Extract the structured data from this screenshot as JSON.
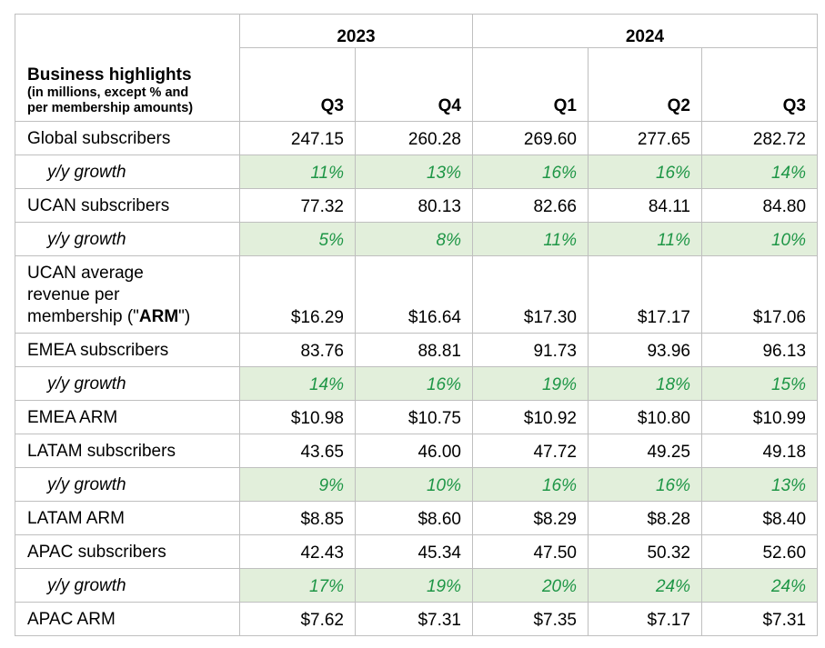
{
  "table": {
    "header": {
      "title": "Business highlights",
      "subtitle_line1": "(in millions, except % and",
      "subtitle_line2": "per membership amounts)",
      "years": [
        "2023",
        "2024"
      ],
      "quarters": [
        "Q3",
        "Q4",
        "Q1",
        "Q2",
        "Q3"
      ]
    },
    "rows": [
      {
        "label": "Global subscribers",
        "growth": false,
        "values": [
          "247.15",
          "260.28",
          "269.60",
          "277.65",
          "282.72"
        ]
      },
      {
        "label": "y/y growth",
        "growth": true,
        "values": [
          "11%",
          "13%",
          "16%",
          "16%",
          "14%"
        ]
      },
      {
        "label": "UCAN subscribers",
        "growth": false,
        "values": [
          "77.32",
          "80.13",
          "82.66",
          "84.11",
          "84.80"
        ]
      },
      {
        "label": "y/y growth",
        "growth": true,
        "values": [
          "5%",
          "8%",
          "11%",
          "11%",
          "10%"
        ]
      },
      {
        "label_line1": "UCAN average",
        "label_line2": "revenue per",
        "label_line3_pre": "membership (\"",
        "label_line3_bold": "ARM",
        "label_line3_post": "\")",
        "growth": false,
        "values": [
          "$16.29",
          "$16.64",
          "$17.30",
          "$17.17",
          "$17.06"
        ]
      },
      {
        "label": "EMEA subscribers",
        "growth": false,
        "values": [
          "83.76",
          "88.81",
          "91.73",
          "93.96",
          "96.13"
        ]
      },
      {
        "label": "y/y growth",
        "growth": true,
        "values": [
          "14%",
          "16%",
          "19%",
          "18%",
          "15%"
        ]
      },
      {
        "label": "EMEA ARM",
        "growth": false,
        "values": [
          "$10.98",
          "$10.75",
          "$10.92",
          "$10.80",
          "$10.99"
        ]
      },
      {
        "label": "LATAM subscribers",
        "growth": false,
        "values": [
          "43.65",
          "46.00",
          "47.72",
          "49.25",
          "49.18"
        ]
      },
      {
        "label": "y/y growth",
        "growth": true,
        "values": [
          "9%",
          "10%",
          "16%",
          "16%",
          "13%"
        ]
      },
      {
        "label": "LATAM ARM",
        "growth": false,
        "values": [
          "$8.85",
          "$8.60",
          "$8.29",
          "$8.28",
          "$8.40"
        ]
      },
      {
        "label": "APAC subscribers",
        "growth": false,
        "values": [
          "42.43",
          "45.34",
          "47.50",
          "50.32",
          "52.60"
        ]
      },
      {
        "label": "y/y growth",
        "growth": true,
        "values": [
          "17%",
          "19%",
          "20%",
          "24%",
          "24%"
        ]
      },
      {
        "label": "APAC ARM",
        "growth": false,
        "values": [
          "$7.62",
          "$7.31",
          "$7.35",
          "$7.17",
          "$7.31"
        ]
      }
    ]
  },
  "colors": {
    "growth_text": "#1e9646",
    "growth_fill": "#e2efdb",
    "grid": "#bfbfbf"
  },
  "chart_data": {
    "type": "table",
    "columns": [
      "2023 Q3",
      "2023 Q4",
      "2024 Q1",
      "2024 Q2",
      "2024 Q3"
    ],
    "rows": [
      {
        "name": "Global subscribers",
        "values": [
          247.15,
          260.28,
          269.6,
          277.65,
          282.72
        ]
      },
      {
        "name": "Global subscribers y/y growth",
        "values": [
          11,
          13,
          16,
          16,
          14
        ]
      },
      {
        "name": "UCAN subscribers",
        "values": [
          77.32,
          80.13,
          82.66,
          84.11,
          84.8
        ]
      },
      {
        "name": "UCAN subscribers y/y growth",
        "values": [
          5,
          8,
          11,
          11,
          10
        ]
      },
      {
        "name": "UCAN ARM",
        "values": [
          16.29,
          16.64,
          17.3,
          17.17,
          17.06
        ]
      },
      {
        "name": "EMEA subscribers",
        "values": [
          83.76,
          88.81,
          91.73,
          93.96,
          96.13
        ]
      },
      {
        "name": "EMEA subscribers y/y growth",
        "values": [
          14,
          16,
          19,
          18,
          15
        ]
      },
      {
        "name": "EMEA ARM",
        "values": [
          10.98,
          10.75,
          10.92,
          10.8,
          10.99
        ]
      },
      {
        "name": "LATAM subscribers",
        "values": [
          43.65,
          46.0,
          47.72,
          49.25,
          49.18
        ]
      },
      {
        "name": "LATAM subscribers y/y growth",
        "values": [
          9,
          10,
          16,
          16,
          13
        ]
      },
      {
        "name": "LATAM ARM",
        "values": [
          8.85,
          8.6,
          8.29,
          8.28,
          8.4
        ]
      },
      {
        "name": "APAC subscribers",
        "values": [
          42.43,
          45.34,
          47.5,
          50.32,
          52.6
        ]
      },
      {
        "name": "APAC subscribers y/y growth",
        "values": [
          17,
          19,
          20,
          24,
          24
        ]
      },
      {
        "name": "APAC ARM",
        "values": [
          7.62,
          7.31,
          7.35,
          7.17,
          7.31
        ]
      }
    ]
  }
}
